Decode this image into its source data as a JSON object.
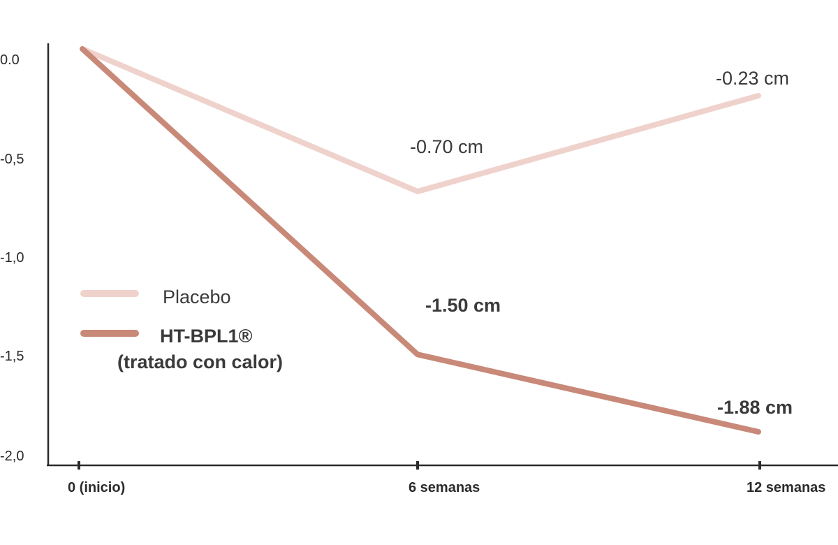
{
  "chart_data": {
    "type": "line",
    "x": [
      "0 (inicio)",
      "6 semanas",
      "12 semanas"
    ],
    "y_ticks": [
      "0.0",
      "-0,5",
      "-1,0",
      "-1,5",
      "-2,0"
    ],
    "ylim": [
      -2.0,
      0.0
    ],
    "grid": false,
    "legend_position": "middle-left",
    "series": [
      {
        "name": "Placebo",
        "values": [
          0.0,
          -0.7,
          -0.23
        ],
        "point_labels": [
          "",
          "-0.70 cm",
          "-0.23 cm"
        ],
        "color": "#EFD2CC"
      },
      {
        "name": "HT-BPL1®",
        "name_line2": "(tratado con calor)",
        "values": [
          0.0,
          -1.5,
          -1.88
        ],
        "point_labels": [
          "",
          "-1.50 cm",
          "-1.88 cm"
        ],
        "color": "#C98978"
      }
    ]
  },
  "colors": {
    "axis": "#2a2a2a",
    "text": "#3a3a3a"
  }
}
